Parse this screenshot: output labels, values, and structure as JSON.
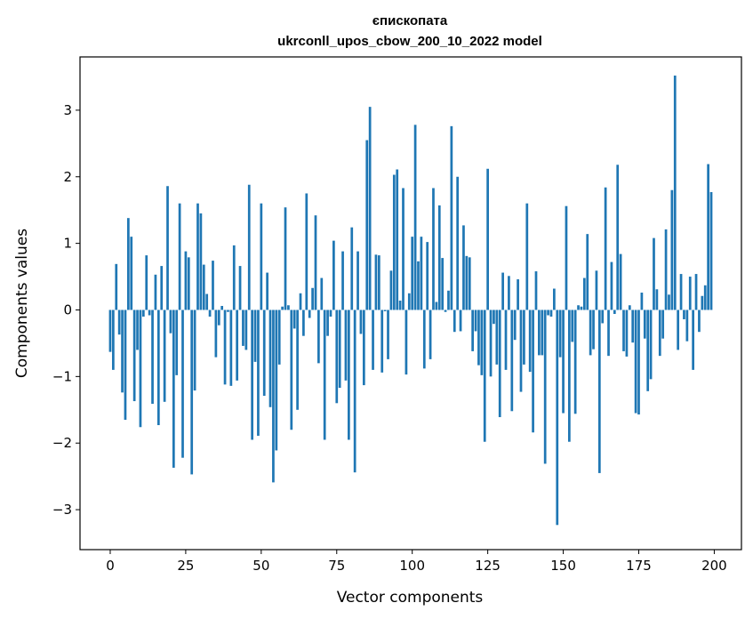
{
  "chart_data": {
    "type": "bar",
    "title": "єпископата",
    "subtitle": "ukrconll_upos_cbow_200_10_2022 model",
    "xlabel": "Vector components",
    "ylabel": "Components values",
    "xlim": [
      -10,
      209
    ],
    "ylim": [
      -3.6,
      3.8
    ],
    "xticks": [
      0,
      25,
      50,
      75,
      100,
      125,
      150,
      175,
      200
    ],
    "yticks": [
      -3,
      -2,
      -1,
      0,
      1,
      2,
      3
    ],
    "ytick_labels": [
      "−3",
      "−2",
      "−1",
      "0",
      "1",
      "2",
      "3"
    ],
    "bar_color": "#1f77b4",
    "grid": false,
    "x": [
      0,
      1,
      2,
      3,
      4,
      5,
      6,
      7,
      8,
      9,
      10,
      11,
      12,
      13,
      14,
      15,
      16,
      17,
      18,
      19,
      20,
      21,
      22,
      23,
      24,
      25,
      26,
      27,
      28,
      29,
      30,
      31,
      32,
      33,
      34,
      35,
      36,
      37,
      38,
      39,
      40,
      41,
      42,
      43,
      44,
      45,
      46,
      47,
      48,
      49,
      50,
      51,
      52,
      53,
      54,
      55,
      56,
      57,
      58,
      59,
      60,
      61,
      62,
      63,
      64,
      65,
      66,
      67,
      68,
      69,
      70,
      71,
      72,
      73,
      74,
      75,
      76,
      77,
      78,
      79,
      80,
      81,
      82,
      83,
      84,
      85,
      86,
      87,
      88,
      89,
      90,
      91,
      92,
      93,
      94,
      95,
      96,
      97,
      98,
      99,
      100,
      101,
      102,
      103,
      104,
      105,
      106,
      107,
      108,
      109,
      110,
      111,
      112,
      113,
      114,
      115,
      116,
      117,
      118,
      119,
      120,
      121,
      122,
      123,
      124,
      125,
      126,
      127,
      128,
      129,
      130,
      131,
      132,
      133,
      134,
      135,
      136,
      137,
      138,
      139,
      140,
      141,
      142,
      143,
      144,
      145,
      146,
      147,
      148,
      149,
      150,
      151,
      152,
      153,
      154,
      155,
      156,
      157,
      158,
      159,
      160,
      161,
      162,
      163,
      164,
      165,
      166,
      167,
      168,
      169,
      170,
      171,
      172,
      173,
      174,
      175,
      176,
      177,
      178,
      179,
      180,
      181,
      182,
      183,
      184,
      185,
      186,
      187,
      188,
      189,
      190,
      191,
      192,
      193,
      194,
      195,
      196,
      197,
      198,
      199
    ],
    "values": [
      -0.63,
      -0.9,
      0.69,
      -0.37,
      -1.24,
      -1.65,
      1.38,
      1.1,
      -1.37,
      -0.6,
      -1.76,
      -0.1,
      0.82,
      -0.08,
      -1.41,
      0.53,
      -1.73,
      0.66,
      -1.38,
      1.86,
      -0.35,
      -2.37,
      -0.98,
      1.6,
      -2.22,
      0.88,
      0.79,
      -2.47,
      -1.21,
      1.6,
      1.45,
      0.68,
      0.24,
      -0.1,
      0.74,
      -0.71,
      -0.23,
      0.06,
      -1.12,
      -0.03,
      -1.14,
      0.97,
      -1.06,
      0.66,
      -0.54,
      -0.6,
      1.88,
      -1.95,
      -0.78,
      -1.89,
      1.6,
      -1.29,
      0.56,
      -1.46,
      -2.59,
      -2.11,
      -0.82,
      0.05,
      1.54,
      0.07,
      -1.8,
      -0.28,
      -1.5,
      0.25,
      -0.39,
      1.75,
      -0.12,
      0.33,
      1.42,
      -0.8,
      0.48,
      -1.95,
      -0.39,
      -0.1,
      1.04,
      -1.4,
      -1.17,
      0.88,
      -1.06,
      -1.95,
      1.24,
      -2.44,
      0.88,
      -0.36,
      -1.13,
      2.55,
      3.05,
      -0.9,
      0.83,
      0.82,
      -0.94,
      -0.02,
      -0.74,
      0.59,
      2.03,
      2.11,
      0.14,
      1.83,
      -0.97,
      0.25,
      1.1,
      2.78,
      0.73,
      1.1,
      -0.88,
      1.02,
      -0.74,
      1.83,
      0.12,
      1.57,
      0.78,
      -0.03,
      0.29,
      2.76,
      -0.33,
      2.0,
      -0.32,
      1.27,
      0.81,
      0.79,
      -0.62,
      -0.32,
      -0.83,
      -0.98,
      -1.98,
      2.12,
      -1.0,
      -0.21,
      -0.82,
      -1.61,
      0.56,
      -0.9,
      0.51,
      -1.52,
      -0.45,
      0.46,
      -1.23,
      -0.82,
      1.6,
      -0.93,
      -1.84,
      0.58,
      -0.68,
      -0.68,
      -2.31,
      -0.08,
      -0.1,
      0.32,
      -3.23,
      -0.71,
      -1.55,
      1.56,
      -1.98,
      -0.48,
      -1.56,
      0.07,
      0.05,
      0.48,
      1.14,
      -0.68,
      -0.59,
      0.59,
      -2.45,
      -0.2,
      1.84,
      -0.69,
      0.72,
      -0.06,
      2.18,
      0.84,
      -0.62,
      -0.7,
      0.07,
      -0.49,
      -1.55,
      -1.57,
      0.26,
      -0.43,
      -1.22,
      -1.04,
      1.08,
      0.31,
      -0.69,
      -0.43,
      1.21,
      0.23,
      1.8,
      3.52,
      -0.6,
      0.54,
      -0.14,
      -0.47,
      0.5,
      -0.9,
      0.54,
      -0.33,
      0.21,
      0.37,
      2.19,
      1.77
    ]
  }
}
